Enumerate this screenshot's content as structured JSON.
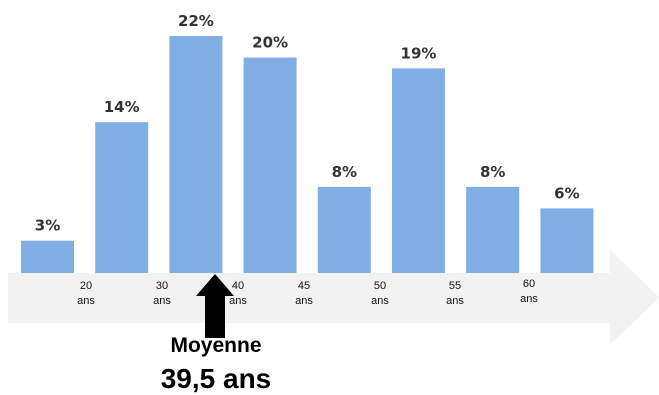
{
  "chart_data": {
    "type": "bar",
    "values": [
      3,
      14,
      22,
      20,
      8,
      19,
      8,
      6
    ],
    "value_labels": [
      "3%",
      "14%",
      "22%",
      "20%",
      "8%",
      "19%",
      "8%",
      "6%"
    ],
    "ylim": [
      0,
      22
    ],
    "axis_ticks": [
      {
        "value": "20",
        "unit": "ans"
      },
      {
        "value": "30",
        "unit": "ans"
      },
      {
        "value": "40",
        "unit": "ans"
      },
      {
        "value": "45",
        "unit": "ans"
      },
      {
        "value": "50",
        "unit": "ans"
      },
      {
        "value": "55",
        "unit": "ans"
      },
      {
        "value": "60",
        "unit": "ans"
      }
    ],
    "mean": {
      "label": "Moyenne",
      "value_text": "39,5 ans"
    },
    "colors": {
      "bar": "#82aee6",
      "axis_arrow": "#f2f2f2",
      "text": "#333333"
    }
  }
}
